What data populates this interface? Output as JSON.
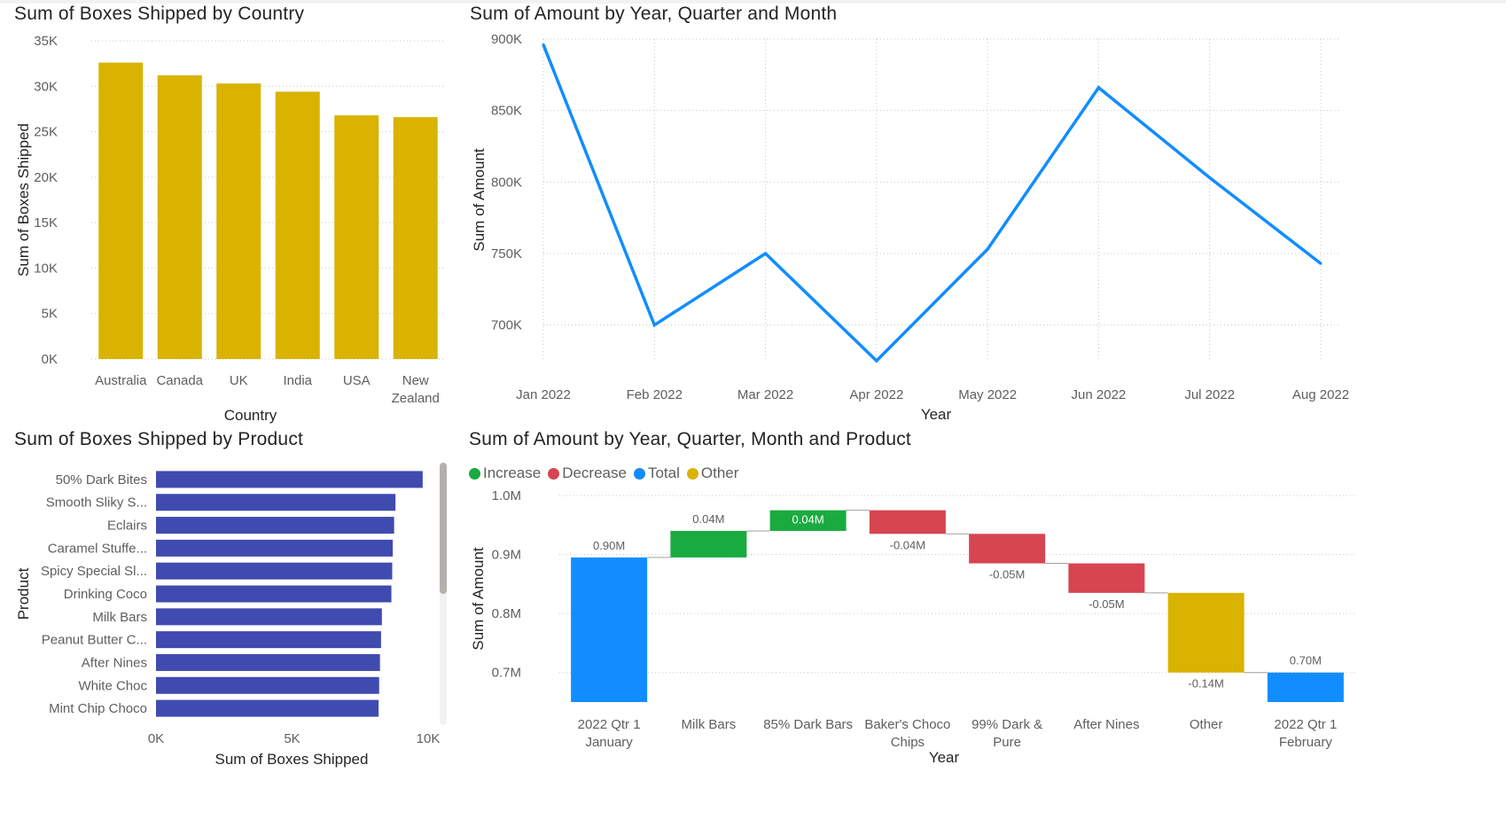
{
  "colors": {
    "country_bar": "#D9B300",
    "product_bar": "#3F4BAF",
    "line": "#118DFF",
    "increase": "#1AAB40",
    "decrease": "#D64550",
    "total": "#118DFF",
    "other": "#D9B300",
    "axis_text": "#605E5C",
    "grid": "#C8C6C4"
  },
  "country_chart": {
    "title": "Sum of Boxes Shipped by Country",
    "chart_data": {
      "type": "bar",
      "categories": [
        "Australia",
        "Canada",
        "UK",
        "India",
        "USA",
        "New Zealand"
      ],
      "values": [
        32600,
        31200,
        30300,
        29400,
        26800,
        26600
      ],
      "ylim": [
        0,
        35000
      ],
      "yticks": [
        "0K",
        "5K",
        "10K",
        "15K",
        "20K",
        "25K",
        "30K",
        "35K"
      ],
      "xlabel": "Country",
      "ylabel": "Sum of Boxes Shipped"
    }
  },
  "amount_line_chart": {
    "title": "Sum of Amount by Year, Quarter and Month",
    "chart_data": {
      "type": "line",
      "x": [
        "Jan 2022",
        "Feb 2022",
        "Mar 2022",
        "Apr 2022",
        "May 2022",
        "Jun 2022",
        "Jul 2022",
        "Aug 2022"
      ],
      "values": [
        896000,
        700000,
        750000,
        675000,
        753000,
        866000,
        803000,
        743000
      ],
      "ylim": [
        675000,
        900000
      ],
      "yticks": [
        "700K",
        "750K",
        "800K",
        "850K",
        "900K"
      ],
      "xlabel": "Year",
      "ylabel": "Sum of Amount"
    }
  },
  "product_chart": {
    "title": "Sum of Boxes Shipped by Product",
    "chart_data": {
      "type": "bar",
      "orientation": "horizontal",
      "categories": [
        "50% Dark Bites",
        "Smooth Sliky S...",
        "Eclairs",
        "Caramel Stuffe...",
        "Spicy Special Sl...",
        "Drinking Coco",
        "Milk Bars",
        "Peanut Butter C...",
        "After Nines",
        "White Choc",
        "Mint Chip Choco"
      ],
      "values": [
        9800,
        8800,
        8750,
        8700,
        8680,
        8650,
        8300,
        8270,
        8230,
        8200,
        8180
      ],
      "xlim": [
        0,
        10000
      ],
      "xticks": [
        "0K",
        "5K",
        "10K"
      ],
      "xlabel": "Sum of Boxes Shipped",
      "ylabel": "Product"
    }
  },
  "waterfall_chart": {
    "title": "Sum of Amount by Year, Quarter, Month and Product",
    "legend": [
      {
        "label": "Increase",
        "color": "#1AAB40"
      },
      {
        "label": "Decrease",
        "color": "#D64550"
      },
      {
        "label": "Total",
        "color": "#118DFF"
      },
      {
        "label": "Other",
        "color": "#D9B300"
      }
    ],
    "chart_data": {
      "type": "waterfall",
      "categories": [
        [
          "2022 Qtr 1",
          "January"
        ],
        [
          "Milk Bars"
        ],
        [
          "85% Dark Bars"
        ],
        [
          "Baker's Choco",
          "Chips"
        ],
        [
          "99% Dark &",
          "Pure"
        ],
        [
          "After Nines"
        ],
        [
          "Other"
        ],
        [
          "2022 Qtr 1",
          "February"
        ]
      ],
      "steps": [
        {
          "kind": "total",
          "start": 0,
          "end": 0.895,
          "label": "0.90M"
        },
        {
          "kind": "increase",
          "start": 0.895,
          "end": 0.94,
          "label": "0.04M"
        },
        {
          "kind": "increase",
          "start": 0.94,
          "end": 0.975,
          "label": "0.04M"
        },
        {
          "kind": "decrease",
          "start": 0.975,
          "end": 0.935,
          "label": "-0.04M"
        },
        {
          "kind": "decrease",
          "start": 0.935,
          "end": 0.885,
          "label": "-0.05M"
        },
        {
          "kind": "decrease",
          "start": 0.885,
          "end": 0.835,
          "label": "-0.05M"
        },
        {
          "kind": "other",
          "start": 0.835,
          "end": 0.7,
          "label": "-0.14M"
        },
        {
          "kind": "total",
          "start": 0,
          "end": 0.7,
          "label": "0.70M"
        }
      ],
      "ylim": [
        0.65,
        1.0
      ],
      "yticks": [
        "0.7M",
        "0.8M",
        "0.9M",
        "1.0M"
      ],
      "xlabel": "Year",
      "ylabel": "Sum of Amount"
    }
  }
}
